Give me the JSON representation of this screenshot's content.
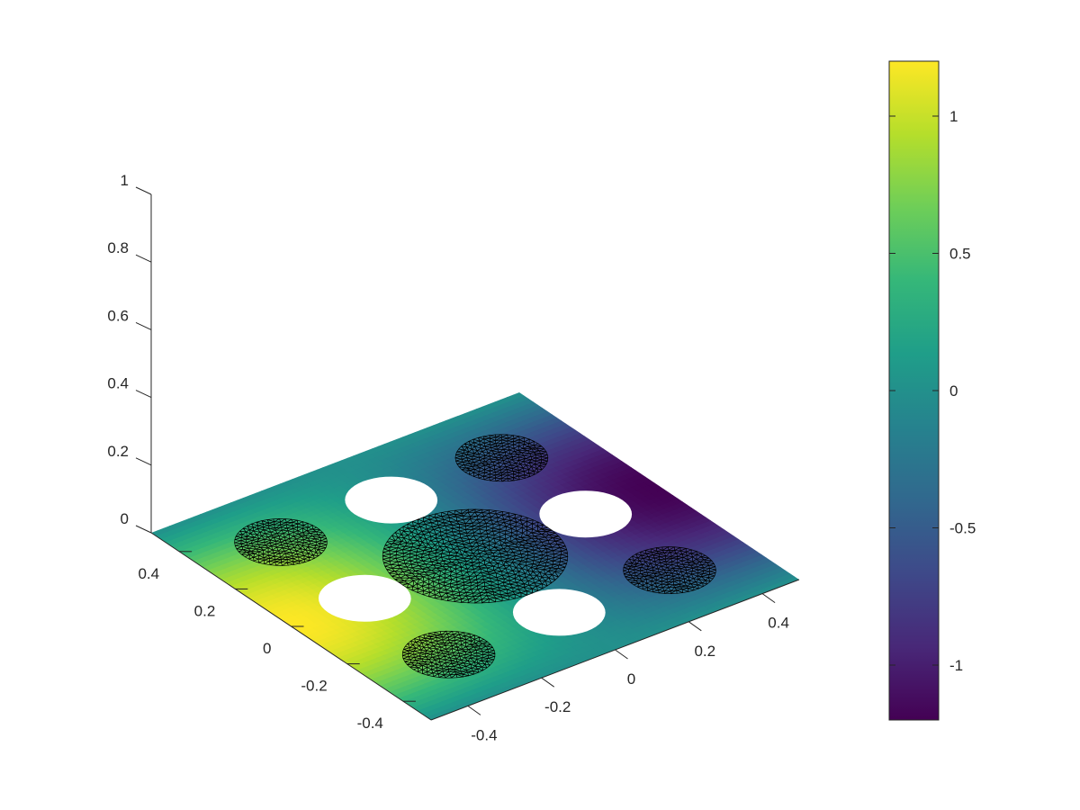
{
  "chart_data": {
    "type": "surface",
    "plot_style": "3d-surface-with-triangular-mesh-patches",
    "colormap": "viridis",
    "colormap_stops": [
      "#440154",
      "#482878",
      "#3e4989",
      "#31688e",
      "#26828e",
      "#1f9e89",
      "#35b779",
      "#6ece58",
      "#b5de2b",
      "#fde725"
    ],
    "title": "",
    "xlabel": "",
    "ylabel": "",
    "zlabel": "",
    "xlim": [
      -0.5,
      0.5
    ],
    "ylim": [
      -0.5,
      0.5
    ],
    "zlim": [
      0,
      1
    ],
    "x_ticks": [
      -0.4,
      -0.2,
      0,
      0.2,
      0.4
    ],
    "y_ticks": [
      -0.4,
      -0.2,
      0,
      0.2,
      0.4
    ],
    "z_ticks": [
      0,
      0.2,
      0.4,
      0.6,
      0.8,
      1
    ],
    "x_tick_labels": [
      "-0.4",
      "-0.2",
      "0",
      "0.2",
      "0.4"
    ],
    "y_tick_labels": [
      "-0.4",
      "-0.2",
      "0",
      "0.2",
      "0.4"
    ],
    "z_tick_labels": [
      "0",
      "0.2",
      "0.4",
      "0.6",
      "0.8",
      "1"
    ],
    "surface_field": {
      "expression": "1.2*sin(pi*x)*cos(pi*y) approx",
      "max": 1.2,
      "min": -1.2
    },
    "holes": [
      {
        "cx": -0.3,
        "cy": 0.0,
        "r": 0.1
      },
      {
        "cx": 0.3,
        "cy": 0.0,
        "r": 0.1
      },
      {
        "cx": 0.0,
        "cy": -0.3,
        "r": 0.1
      },
      {
        "cx": 0.0,
        "cy": 0.3,
        "r": 0.1
      }
    ],
    "meshed_disks": [
      {
        "cx": 0.0,
        "cy": 0.0,
        "r": 0.2,
        "density": 14
      },
      {
        "cx": -0.3,
        "cy": 0.3,
        "r": 0.1,
        "density": 8
      },
      {
        "cx": 0.3,
        "cy": 0.3,
        "r": 0.1,
        "density": 8
      },
      {
        "cx": -0.3,
        "cy": -0.3,
        "r": 0.1,
        "density": 8
      },
      {
        "cx": 0.3,
        "cy": -0.3,
        "r": 0.1,
        "density": 8
      }
    ],
    "colorbar": {
      "limits": [
        -1.2,
        1.2
      ],
      "ticks": [
        -1,
        -0.5,
        0,
        0.5,
        1
      ],
      "tick_labels": [
        "-1",
        "-0.5",
        "0",
        "0.5",
        "1"
      ]
    },
    "grid": false,
    "legend": "none"
  }
}
